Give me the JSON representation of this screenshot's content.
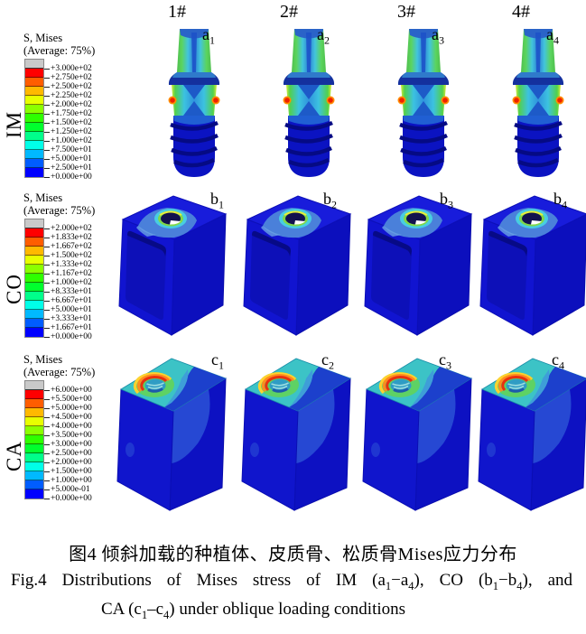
{
  "columns": [
    "1#",
    "2#",
    "3#",
    "4#"
  ],
  "colorbar": {
    "cap_color": "#c9c9c9",
    "band_colors_top_to_bottom": [
      "#ff0000",
      "#ff5d00",
      "#ffb900",
      "#e8ff00",
      "#8bff00",
      "#2eff00",
      "#00ff2e",
      "#00ff8b",
      "#00ffe8",
      "#00b9ff",
      "#005dff",
      "#0000ff"
    ]
  },
  "rows": [
    {
      "row_label": "IM",
      "legend": {
        "title": "S, Mises",
        "subtitle": "(Average: 75%)",
        "ticks": [
          "+3.000e+02",
          "+2.750e+02",
          "+2.500e+02",
          "+2.250e+02",
          "+2.000e+02",
          "+1.750e+02",
          "+1.500e+02",
          "+1.250e+02",
          "+1.000e+02",
          "+7.500e+01",
          "+5.000e+01",
          "+2.500e+01",
          "+0.000e+00"
        ]
      },
      "items": [
        {
          "label_base": "a",
          "label_sub": "1"
        },
        {
          "label_base": "a",
          "label_sub": "2"
        },
        {
          "label_base": "a",
          "label_sub": "3"
        },
        {
          "label_base": "a",
          "label_sub": "4"
        }
      ]
    },
    {
      "row_label": "CO",
      "legend": {
        "title": "S, Mises",
        "subtitle": "(Average: 75%)",
        "ticks": [
          "+2.000e+02",
          "+1.833e+02",
          "+1.667e+02",
          "+1.500e+02",
          "+1.333e+02",
          "+1.167e+02",
          "+1.000e+02",
          "+8.333e+01",
          "+6.667e+01",
          "+5.000e+01",
          "+3.333e+01",
          "+1.667e+01",
          "+0.000e+00"
        ]
      },
      "items": [
        {
          "label_base": "b",
          "label_sub": "1"
        },
        {
          "label_base": "b",
          "label_sub": "2"
        },
        {
          "label_base": "b",
          "label_sub": "3"
        },
        {
          "label_base": "b",
          "label_sub": "4"
        }
      ]
    },
    {
      "row_label": "CA",
      "legend": {
        "title": "S, Mises",
        "subtitle": "(Average: 75%)",
        "ticks": [
          "+6.000e+00",
          "+5.500e+00",
          "+5.000e+00",
          "+4.500e+00",
          "+4.000e+00",
          "+3.500e+00",
          "+3.000e+00",
          "+2.500e+00",
          "+2.000e+00",
          "+1.500e+00",
          "+1.000e+00",
          "+5.000e-01",
          "+0.000e+00"
        ]
      },
      "items": [
        {
          "label_base": "c",
          "label_sub": "1"
        },
        {
          "label_base": "c",
          "label_sub": "2"
        },
        {
          "label_base": "c",
          "label_sub": "3"
        },
        {
          "label_base": "c",
          "label_sub": "4"
        }
      ]
    }
  ],
  "caption": {
    "zh": "图4 倾斜加载的种植体、皮质骨、松质骨Mises应力分布",
    "en_line1": [
      {
        "t": "Fig.4 Distributions of Mises stress of IM (a"
      },
      {
        "t": "1",
        "s": 1
      },
      {
        "t": "−a"
      },
      {
        "t": "4",
        "s": 1
      },
      {
        "t": "), CO (b"
      },
      {
        "t": "1",
        "s": 1
      },
      {
        "t": "−b"
      },
      {
        "t": "4",
        "s": 1
      },
      {
        "t": "), and"
      }
    ],
    "en_line2": [
      {
        "t": "CA (c"
      },
      {
        "t": "1",
        "s": 1
      },
      {
        "t": "–c"
      },
      {
        "t": "4",
        "s": 1
      },
      {
        "t": ") under oblique loading conditions"
      }
    ]
  }
}
